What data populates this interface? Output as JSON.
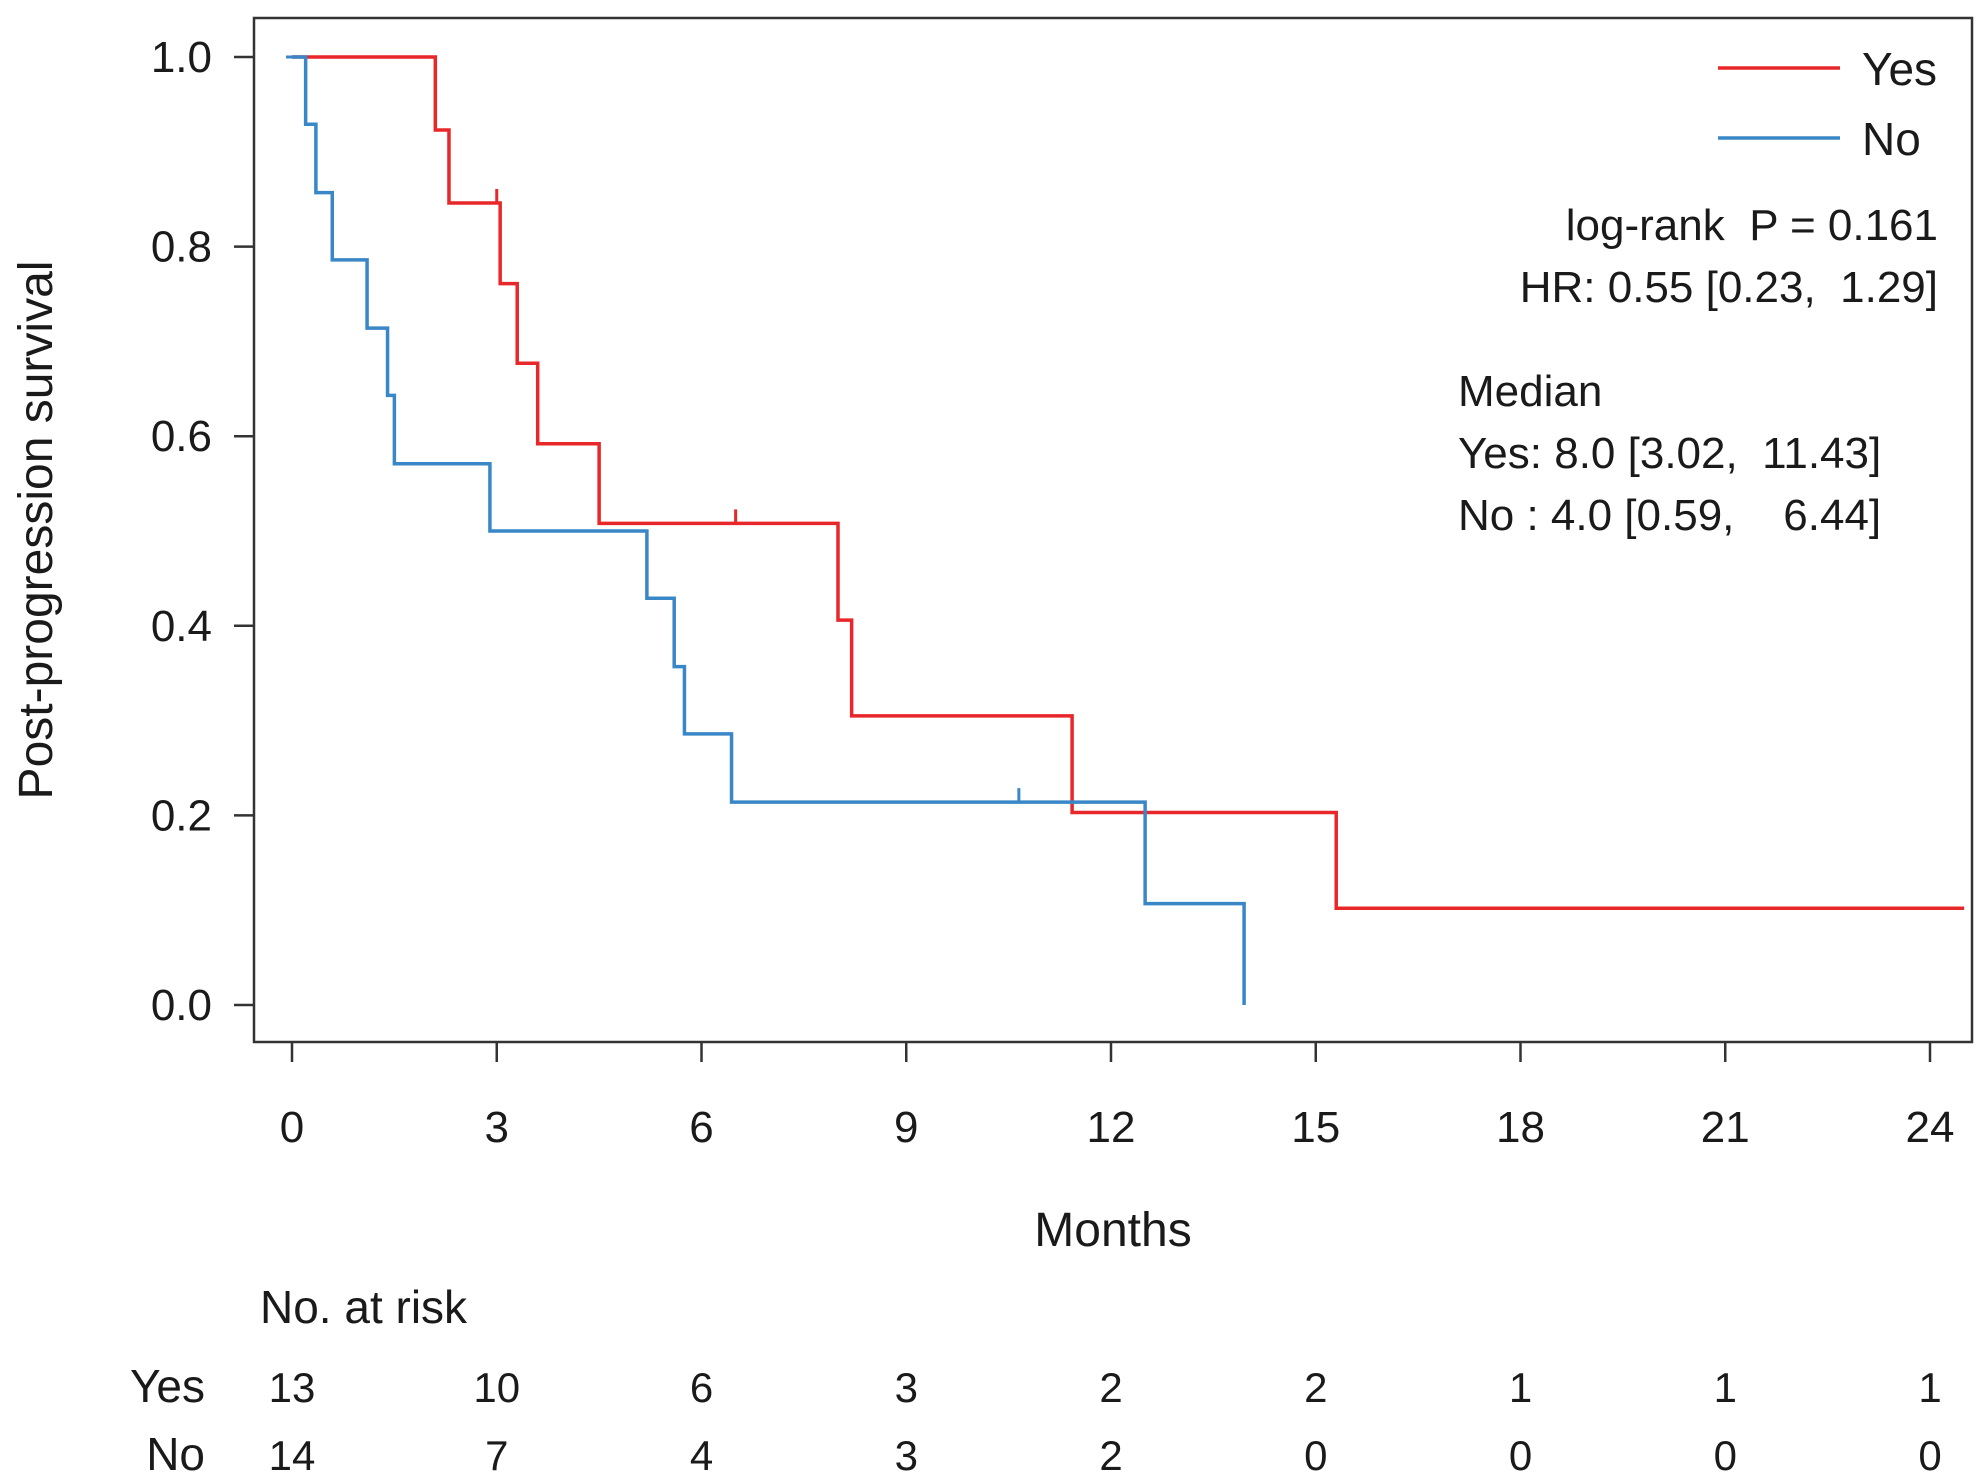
{
  "chart_data": {
    "type": "line",
    "subtype": "kaplan-meier",
    "xlabel": "Months",
    "ylabel": "Post-progression survival",
    "xlim": [
      0,
      24
    ],
    "ylim": [
      0,
      1
    ],
    "xticks": [
      "0",
      "3",
      "6",
      "9",
      "12",
      "15",
      "18",
      "21",
      "24"
    ],
    "yticks": [
      "0.0",
      "0.2",
      "0.4",
      "0.6",
      "0.8",
      "1.0"
    ],
    "grid": false,
    "legend_position": "top-right",
    "series": [
      {
        "name": "Yes",
        "color": "#e8272a",
        "steps": [
          [
            0,
            1.0
          ],
          [
            2.1,
            0.923
          ],
          [
            2.3,
            0.846
          ],
          [
            3.05,
            0.761
          ],
          [
            3.3,
            0.677
          ],
          [
            3.6,
            0.592
          ],
          [
            4.5,
            0.508
          ],
          [
            8.0,
            0.406
          ],
          [
            8.2,
            0.305
          ],
          [
            11.43,
            0.203
          ],
          [
            15.3,
            0.102
          ]
        ],
        "end_x": 24.5,
        "censor": [
          [
            3.0,
            0.846
          ],
          [
            6.5,
            0.508
          ]
        ]
      },
      {
        "name": "No",
        "color": "#3a87c8",
        "steps": [
          [
            0,
            1.0
          ],
          [
            0.2,
            0.929
          ],
          [
            0.35,
            0.857
          ],
          [
            0.59,
            0.786
          ],
          [
            1.1,
            0.714
          ],
          [
            1.4,
            0.643
          ],
          [
            1.5,
            0.571
          ],
          [
            2.9,
            0.5
          ],
          [
            5.2,
            0.429
          ],
          [
            5.6,
            0.357
          ],
          [
            5.75,
            0.286
          ],
          [
            6.44,
            0.214
          ],
          [
            12.5,
            0.107
          ],
          [
            13.95,
            0.0
          ]
        ],
        "end_x": 13.95,
        "censor": [
          [
            10.65,
            0.214
          ]
        ]
      }
    ],
    "annotations": {
      "test": "log-rank  P = 0.161",
      "hr": "HR: 0.55 [0.23,  1.29]",
      "median_title": "Median",
      "median_yes": "Yes: 8.0 [3.02,  11.43]",
      "median_no": "No : 4.0 [0.59,    6.44]"
    },
    "risk_table": {
      "title": "No. at risk",
      "times": [
        0,
        3,
        6,
        9,
        12,
        15,
        18,
        21,
        24
      ],
      "rows": [
        {
          "label": "Yes",
          "counts": [
            "13",
            "10",
            "6",
            "3",
            "2",
            "2",
            "1",
            "1",
            "1"
          ]
        },
        {
          "label": "No",
          "counts": [
            "14",
            "7",
            "4",
            "3",
            "2",
            "0",
            "0",
            "0",
            "0"
          ]
        }
      ]
    }
  }
}
